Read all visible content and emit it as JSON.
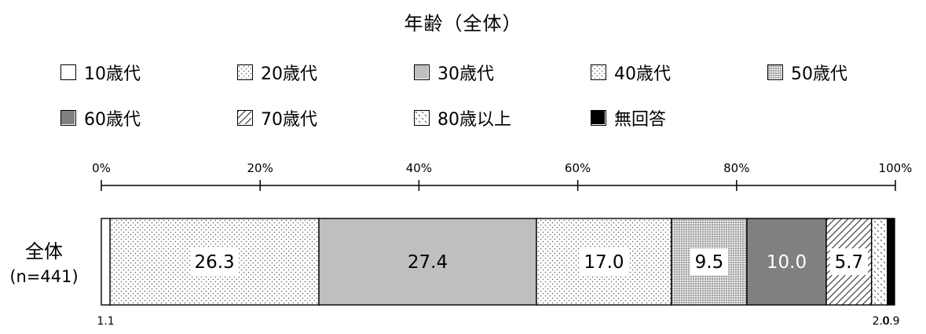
{
  "chart_data": {
    "type": "bar",
    "orientation": "horizontal",
    "stacked": true,
    "title": "年齢（全体）",
    "categories": [
      "全体"
    ],
    "category_sublabels": [
      "(n=441)"
    ],
    "series": [
      {
        "name": "10歳代",
        "values": [
          1.1
        ],
        "label": "1.1",
        "pattern": "white"
      },
      {
        "name": "20歳代",
        "values": [
          26.3
        ],
        "label": "26.3",
        "pattern": "dots"
      },
      {
        "name": "30歳代",
        "values": [
          27.4
        ],
        "label": "27.4",
        "pattern": "gray"
      },
      {
        "name": "40歳代",
        "values": [
          17.0
        ],
        "label": "17.0",
        "pattern": "dots"
      },
      {
        "name": "50歳代",
        "values": [
          9.5
        ],
        "label": "9.5",
        "pattern": "dense-dots"
      },
      {
        "name": "60歳代",
        "values": [
          10.0
        ],
        "label": "10.0",
        "pattern": "dark-gray"
      },
      {
        "name": "70歳代",
        "values": [
          5.7
        ],
        "label": "5.7",
        "pattern": "hatch"
      },
      {
        "name": "80歳以上",
        "values": [
          2.0
        ],
        "label": "2.0",
        "pattern": "sparse"
      },
      {
        "name": "無回答",
        "values": [
          0.9
        ],
        "label": "0.9",
        "pattern": "black"
      }
    ],
    "xlim": [
      0,
      100
    ],
    "x_ticks": [
      "0%",
      "20%",
      "40%",
      "60%",
      "80%",
      "100%"
    ],
    "x_tick_values": [
      0,
      20,
      40,
      60,
      80,
      100
    ],
    "legend_position": "top",
    "grid": false,
    "colors": {
      "gray": "#bfbfbf",
      "dark_gray": "#808080",
      "black": "#000000",
      "white": "#ffffff"
    }
  }
}
